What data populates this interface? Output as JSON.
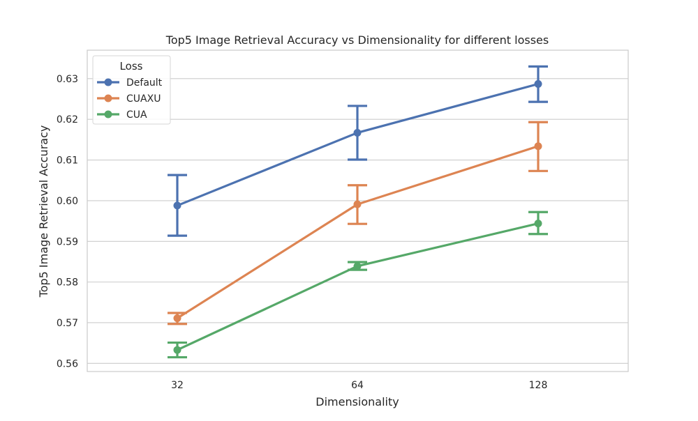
{
  "chart_data": {
    "type": "line",
    "title": "Top5 Image Retrieval Accuracy vs Dimensionality for different losses",
    "xlabel": "Dimensionality",
    "ylabel": "Top5 Image Retrieval Accuracy",
    "categories": [
      "32",
      "64",
      "128"
    ],
    "ylim": [
      0.558,
      0.637
    ],
    "yticks": [
      0.56,
      0.57,
      0.58,
      0.59,
      0.6,
      0.61,
      0.62,
      0.63
    ],
    "ytick_labels": [
      "0.56",
      "0.57",
      "0.58",
      "0.59",
      "0.60",
      "0.61",
      "0.62",
      "0.63"
    ],
    "grid": true,
    "legend": {
      "title": "Loss",
      "placement": "top-left"
    },
    "series": [
      {
        "name": "Default",
        "color": "#4c72b0",
        "values": [
          0.5988,
          0.6167,
          0.6287
        ],
        "err_low": [
          0.5914,
          0.6101,
          0.6243
        ],
        "err_high": [
          0.6063,
          0.6233,
          0.633
        ]
      },
      {
        "name": "CUAXU",
        "color": "#dd8452",
        "values": [
          0.5711,
          0.5991,
          0.6134
        ],
        "err_low": [
          0.5697,
          0.5943,
          0.6073
        ],
        "err_high": [
          0.5724,
          0.6038,
          0.6193
        ]
      },
      {
        "name": "CUA",
        "color": "#55a868",
        "values": [
          0.5633,
          0.5839,
          0.5944
        ],
        "err_low": [
          0.5615,
          0.583,
          0.5918
        ],
        "err_high": [
          0.5651,
          0.5849,
          0.5972
        ]
      }
    ]
  }
}
